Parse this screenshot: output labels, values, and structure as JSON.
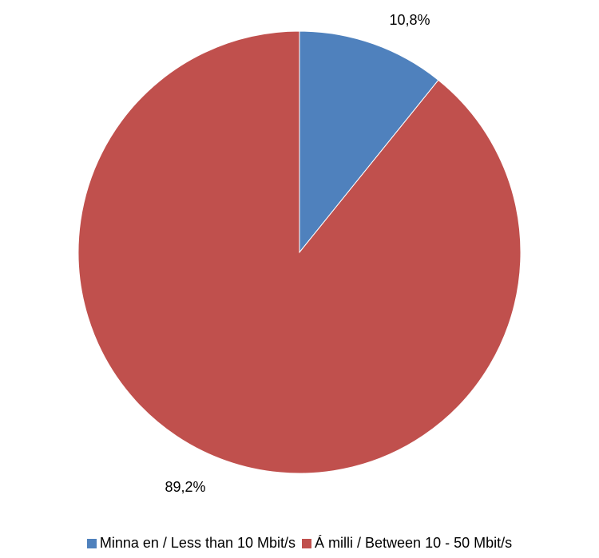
{
  "chart_data": {
    "type": "pie",
    "categories": [
      "Minna en / Less than 10 Mbit/s",
      "Á milli / Between 10 - 50 Mbit/s"
    ],
    "values": [
      10.8,
      89.2
    ],
    "data_labels": [
      "10,8%",
      "89,2%"
    ],
    "colors": [
      "#4f81bd",
      "#c0504d"
    ],
    "start_angle_deg": 0,
    "direction": "clockwise",
    "legend_position": "bottom",
    "title": ""
  }
}
